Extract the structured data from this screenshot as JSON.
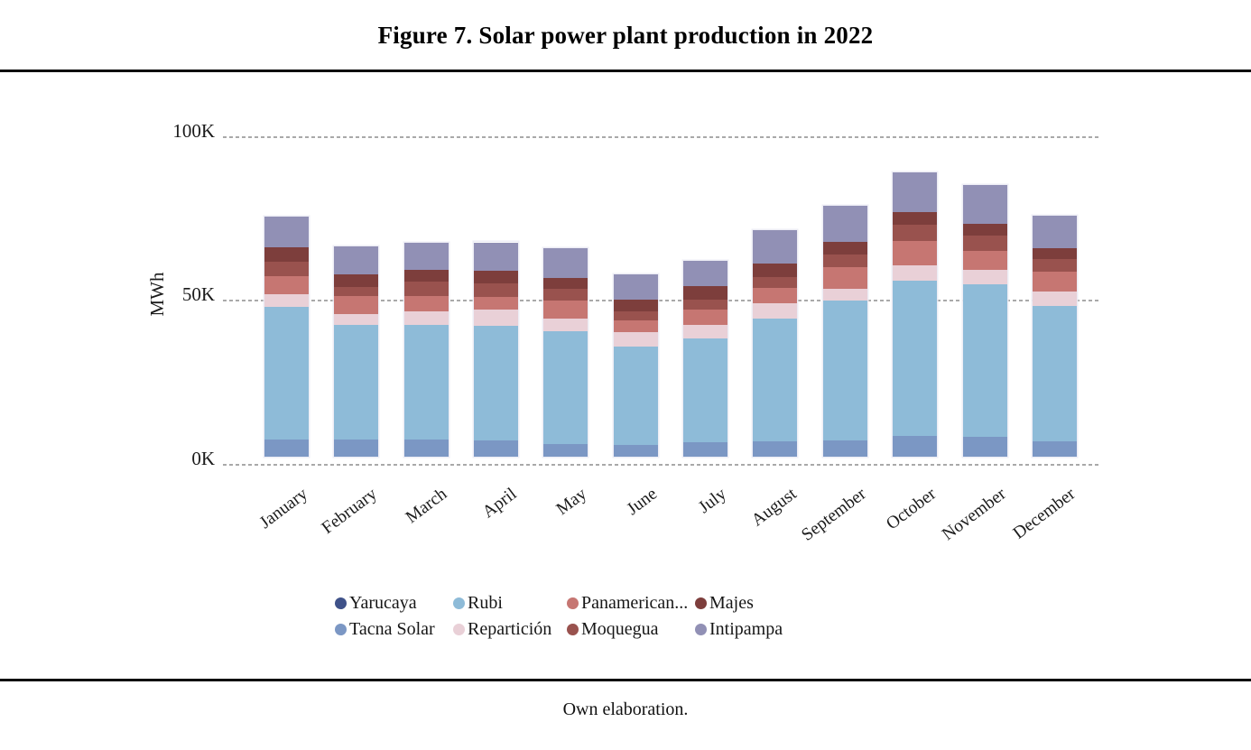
{
  "figure": {
    "title": "Figure 7. Solar power plant production in 2022",
    "caption": "Own elaboration."
  },
  "chart_data": {
    "type": "bar",
    "stacked": true,
    "title": "Figure 7. Solar power plant production in 2022",
    "xlabel": "",
    "ylabel": "MWh",
    "unit": "thousand MWh (K)",
    "ylim_k": [
      0,
      100
    ],
    "yticks": [
      {
        "label": "0K",
        "value_k": 0
      },
      {
        "label": "50K",
        "value_k": 50
      },
      {
        "label": "100K",
        "value_k": 100
      }
    ],
    "grid": "horizontal dashed",
    "legend_position": "bottom",
    "categories": [
      "January",
      "February",
      "March",
      "April",
      "May",
      "June",
      "July",
      "August",
      "September",
      "October",
      "November",
      "December"
    ],
    "series": [
      {
        "name": "Yarucaya",
        "color": "#3f5289",
        "values_k": [
          0,
          0,
          0,
          0,
          0,
          0,
          0,
          0,
          0,
          0,
          0,
          0
        ]
      },
      {
        "name": "Tacna Solar",
        "color": "#7b97c4",
        "values_k": [
          5.3,
          5.3,
          5.3,
          4.9,
          3.9,
          3.5,
          4.4,
          4.6,
          4.9,
          6.4,
          6.0,
          4.8
        ]
      },
      {
        "name": "Rubi",
        "color": "#8ebbd8",
        "values_k": [
          40.4,
          34.9,
          34.9,
          35.1,
          34.4,
          30.1,
          31.7,
          37.4,
          42.7,
          47.4,
          46.5,
          41.1
        ]
      },
      {
        "name": "Repartición",
        "color": "#e9d0d7",
        "values_k": [
          3.9,
          3.2,
          4.1,
          4.8,
          3.7,
          4.3,
          4.1,
          4.8,
          3.7,
          4.6,
          4.4,
          4.4
        ]
      },
      {
        "name": "Panamerican...",
        "color": "#c67672",
        "values_k": [
          5.5,
          5.5,
          4.8,
          4.0,
          5.5,
          3.7,
          4.6,
          4.6,
          6.4,
          7.5,
          5.8,
          6.1
        ]
      },
      {
        "name": "Moquegua",
        "color": "#99524e",
        "values_k": [
          4.4,
          2.8,
          4.2,
          4.2,
          3.7,
          2.7,
          3.2,
          3.5,
          3.9,
          4.8,
          4.8,
          3.9
        ]
      },
      {
        "name": "Majes",
        "color": "#7d3e3c",
        "values_k": [
          4.3,
          3.9,
          3.7,
          3.7,
          3.2,
          3.7,
          4.0,
          4.1,
          4.0,
          3.9,
          3.5,
          3.2
        ]
      },
      {
        "name": "Intipampa",
        "color": "#9190b5",
        "values_k": [
          9.4,
          8.6,
          8.3,
          8.7,
          9.2,
          7.6,
          7.7,
          10.1,
          11.0,
          12.1,
          11.8,
          10.1
        ]
      }
    ],
    "totals_k": [
      73.2,
      64.2,
      65.3,
      65.4,
      63.6,
      55.6,
      59.7,
      69.1,
      76.6,
      86.7,
      82.8,
      73.6
    ]
  }
}
